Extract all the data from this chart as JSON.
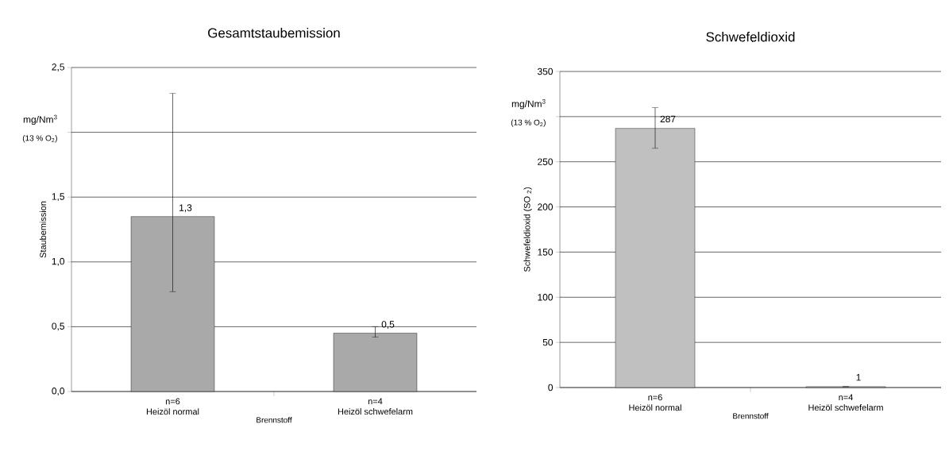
{
  "chart_data": [
    {
      "type": "bar",
      "title": "Gesamtstaubemission",
      "xlabel": "Brennstoff",
      "ylabel": "Staubemission",
      "categories": [
        "Heizöl normal",
        "Heizöl schwefelarm"
      ],
      "values": [
        1.35,
        0.45
      ],
      "errors": [
        [
          0.77,
          2.3
        ],
        [
          0.42,
          0.5
        ]
      ],
      "value_labels": [
        "1,3",
        "0,5"
      ],
      "color": "#a9a9a9",
      "ylim": [
        0,
        2.5
      ],
      "yticks": [
        {
          "value": 0,
          "label": "0,0"
        },
        {
          "value": 0.5,
          "label": "0,5"
        },
        {
          "value": 1,
          "label": "1,0"
        },
        {
          "value": 1.5,
          "label": "1,5"
        },
        {
          "value": 2,
          "label": null
        },
        {
          "value": 2.5,
          "label": "2,5"
        }
      ],
      "grid": "y",
      "annotations": [
        "mg/Nm$^{3}$",
        "(13 % O$_{2}$)",
        "n=6",
        "n=4"
      ]
    },
    {
      "type": "bar",
      "title": "Schwefeldioxid",
      "xlabel": "Brennstoff",
      "ylabel": "Schwefeldioxid (SO $_{2}$)",
      "categories": [
        "Heizöl normal",
        "Heizöl schwefelarm"
      ],
      "values": [
        287,
        1
      ],
      "errors": [
        [
          265,
          310
        ],
        null
      ],
      "data_labels": true,
      "color": "#c0c0c0",
      "ylim": [
        0,
        350
      ],
      "yticks": [
        0,
        50,
        100,
        150,
        200,
        250,
        {
          "value": 300,
          "label": null
        },
        350
      ],
      "grid": "y",
      "annotations": [
        "mg/Nm$^{3}$",
        "(13 % O$_{2}$)",
        "n=6",
        "n=4"
      ]
    }
  ]
}
